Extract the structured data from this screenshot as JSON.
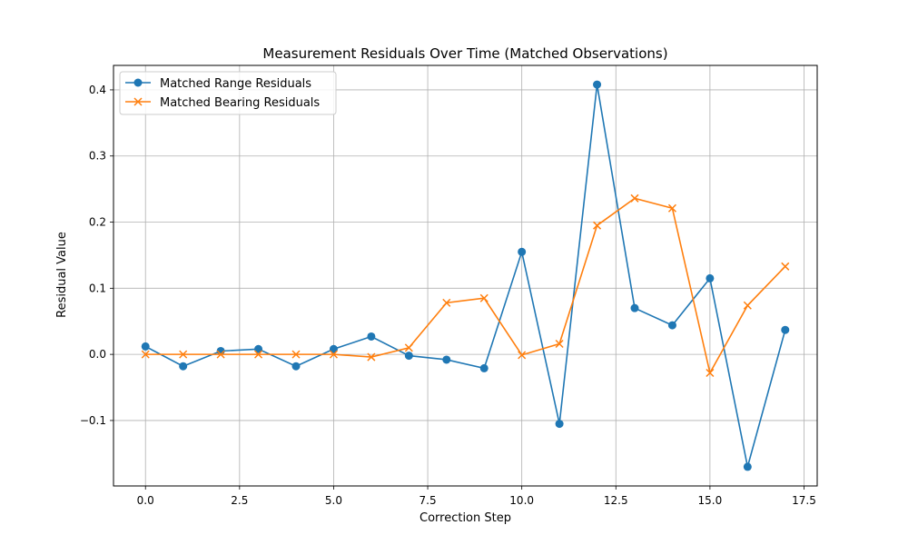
{
  "chart_data": {
    "type": "line",
    "title": "Measurement Residuals Over Time (Matched Observations)",
    "xlabel": "Correction Step",
    "ylabel": "Residual Value",
    "xlim": [
      -0.85,
      17.85
    ],
    "ylim": [
      -0.199,
      0.437
    ],
    "x_ticks": [
      0.0,
      2.5,
      5.0,
      7.5,
      10.0,
      12.5,
      15.0,
      17.5
    ],
    "x_tick_labels": [
      "0.0",
      "2.5",
      "5.0",
      "7.5",
      "10.0",
      "12.5",
      "15.0",
      "17.5"
    ],
    "y_ticks": [
      -0.1,
      0.0,
      0.1,
      0.2,
      0.3,
      0.4
    ],
    "y_tick_labels": [
      "−0.1",
      "0.0",
      "0.1",
      "0.2",
      "0.3",
      "0.4"
    ],
    "grid": true,
    "legend_position": "top-left",
    "x": [
      0,
      1,
      2,
      3,
      4,
      5,
      6,
      7,
      8,
      9,
      10,
      11,
      12,
      13,
      14,
      15,
      16,
      17
    ],
    "series": [
      {
        "name": "Matched Range Residuals",
        "color": "#1f77b4",
        "marker": "circle",
        "values": [
          0.012,
          -0.018,
          0.005,
          0.008,
          -0.018,
          0.008,
          0.027,
          -0.002,
          -0.008,
          -0.021,
          0.155,
          -0.105,
          0.408,
          0.07,
          0.044,
          0.115,
          -0.17,
          0.037
        ]
      },
      {
        "name": "Matched Bearing Residuals",
        "color": "#ff7f0e",
        "marker": "x",
        "values": [
          0.0,
          0.0,
          0.0,
          0.0,
          0.0,
          0.0,
          -0.004,
          0.01,
          0.078,
          0.085,
          -0.001,
          0.016,
          0.195,
          0.236,
          0.221,
          -0.028,
          0.074,
          0.133
        ]
      }
    ]
  }
}
